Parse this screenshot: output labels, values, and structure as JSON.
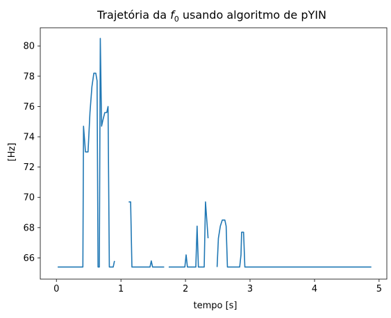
{
  "chart_data": {
    "type": "line",
    "title_prefix": "Trajetória da ",
    "title_var": "f",
    "title_sub": "0",
    "title_suffix": " usando algoritmo de pYIN",
    "xlabel": "tempo [s]",
    "ylabel": "[Hz]",
    "xlim": [
      -0.25,
      5.12
    ],
    "ylim": [
      64.6,
      81.2
    ],
    "x_ticks": [
      0,
      1,
      2,
      3,
      4,
      5
    ],
    "y_ticks": [
      66,
      68,
      70,
      72,
      74,
      76,
      78,
      80
    ],
    "x_tick_labels": [
      "0",
      "1",
      "2",
      "3",
      "4",
      "5"
    ],
    "y_tick_labels": [
      "66",
      "68",
      "70",
      "72",
      "74",
      "76",
      "78",
      "80"
    ],
    "grid": false,
    "line_color": "#1f77b4",
    "series": [
      {
        "segments": [
          [
            [
              0.02,
              65.4
            ],
            [
              0.41,
              65.4
            ],
            [
              0.42,
              74.7
            ],
            [
              0.45,
              73.0
            ],
            [
              0.49,
              73.0
            ],
            [
              0.52,
              75.6
            ],
            [
              0.55,
              77.3
            ],
            [
              0.58,
              78.2
            ],
            [
              0.61,
              78.2
            ],
            [
              0.63,
              77.7
            ],
            [
              0.645,
              65.4
            ],
            [
              0.665,
              65.4
            ],
            [
              0.68,
              80.5
            ],
            [
              0.7,
              74.7
            ],
            [
              0.72,
              75.1
            ],
            [
              0.75,
              75.6
            ],
            [
              0.78,
              75.6
            ],
            [
              0.8,
              76.0
            ],
            [
              0.82,
              65.4
            ],
            [
              0.88,
              65.4
            ],
            [
              0.9,
              65.8
            ]
          ],
          [
            [
              1.12,
              69.7
            ],
            [
              1.15,
              69.7
            ],
            [
              1.17,
              65.4
            ],
            [
              1.45,
              65.4
            ],
            [
              1.47,
              65.8
            ],
            [
              1.49,
              65.4
            ],
            [
              1.67,
              65.4
            ]
          ],
          [
            [
              1.74,
              65.4
            ],
            [
              1.99,
              65.4
            ],
            [
              2.01,
              66.2
            ],
            [
              2.03,
              65.4
            ],
            [
              2.16,
              65.4
            ],
            [
              2.18,
              68.1
            ],
            [
              2.2,
              65.4
            ],
            [
              2.29,
              65.4
            ],
            [
              2.31,
              69.7
            ],
            [
              2.35,
              67.3
            ]
          ],
          [
            [
              2.49,
              65.4
            ],
            [
              2.51,
              67.3
            ],
            [
              2.54,
              68.1
            ],
            [
              2.57,
              68.5
            ],
            [
              2.61,
              68.5
            ],
            [
              2.63,
              68.1
            ],
            [
              2.65,
              65.4
            ],
            [
              2.84,
              65.4
            ],
            [
              2.86,
              66.2
            ],
            [
              2.87,
              67.7
            ],
            [
              2.9,
              67.7
            ],
            [
              2.92,
              65.4
            ],
            [
              4.88,
              65.4
            ]
          ]
        ]
      }
    ]
  }
}
